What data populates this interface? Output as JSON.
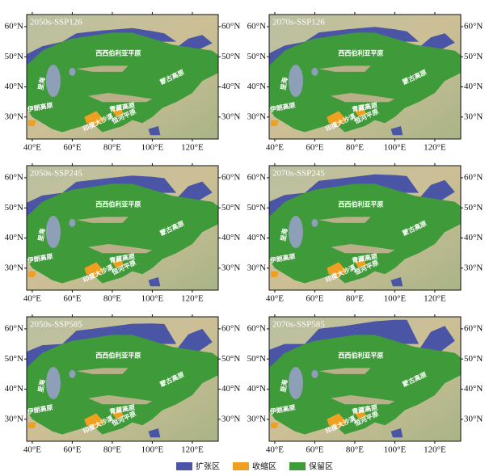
{
  "panels": [
    {
      "title": "2050s-SSP126"
    },
    {
      "title": "2070s-SSP126"
    },
    {
      "title": "2050s-SSP245"
    },
    {
      "title": "2070s-SSP245"
    },
    {
      "title": "2050s-SSP585"
    },
    {
      "title": "2070s-SSP585"
    }
  ],
  "x_ticks": [
    "40°E",
    "60°E",
    "80°E",
    "100°E",
    "120°E"
  ],
  "y_ticks": [
    "30°N",
    "40°N",
    "50°N",
    "60°N"
  ],
  "region_labels": [
    "西西伯利亚平原",
    "里海",
    "伊朗高原",
    "青藏高原",
    "印度大沙漠",
    "恒河平原",
    "蒙古高原"
  ],
  "legend": [
    {
      "label": "扩张区",
      "color": "#4a55a6"
    },
    {
      "label": "收缩区",
      "color": "#f0a020"
    },
    {
      "label": "保留区",
      "color": "#3f9a3a"
    }
  ]
}
